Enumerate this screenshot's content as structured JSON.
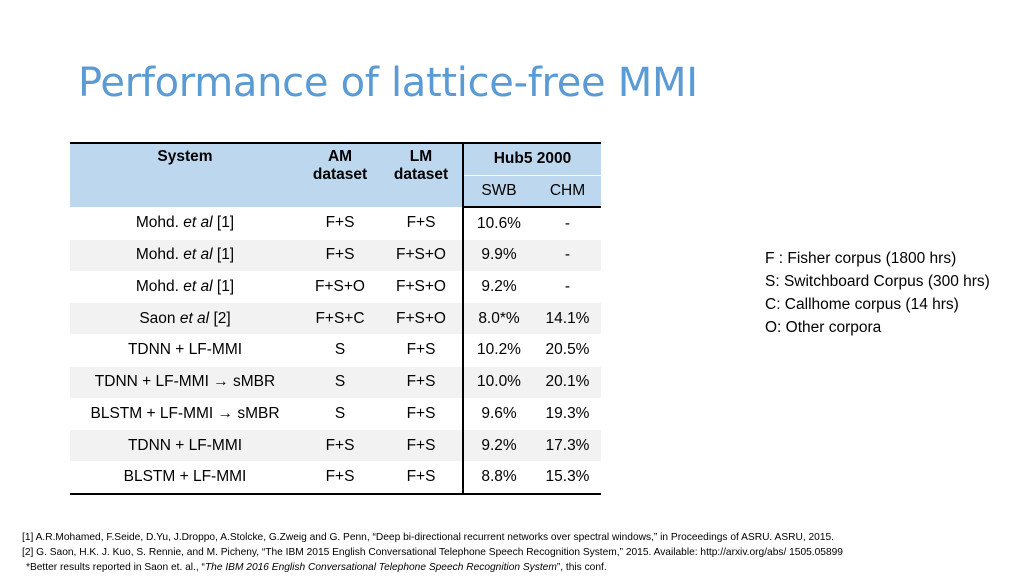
{
  "title": "Performance of lattice-free MMI",
  "table": {
    "headers": {
      "system": "System",
      "am_line1": "AM",
      "am_line2": "dataset",
      "lm_line1": "LM",
      "lm_line2": "dataset",
      "hub5": "Hub5 2000",
      "swb": "SWB",
      "chm": "CHM"
    },
    "rows": [
      {
        "sys_name": "Mohd. ",
        "sys_italic": "et al",
        "sys_ref": " [1]",
        "am": "F+S",
        "lm": "F+S",
        "swb": "10.6%",
        "chm": "-"
      },
      {
        "sys_name": "Mohd. ",
        "sys_italic": "et al",
        "sys_ref": " [1]",
        "am": "F+S",
        "lm": "F+S+O",
        "swb": "9.9%",
        "chm": "-"
      },
      {
        "sys_name": "Mohd. ",
        "sys_italic": "et al",
        "sys_ref": " [1]",
        "am": "F+S+O",
        "lm": "F+S+O",
        "swb": "9.2%",
        "chm": "-"
      },
      {
        "sys_name": "Saon ",
        "sys_italic": "et al",
        "sys_ref": " [2]",
        "am": "F+S+C",
        "lm": "F+S+O",
        "swb": "8.0*%",
        "chm": "14.1%"
      },
      {
        "sys_name": "TDNN + LF-MMI",
        "sys_italic": "",
        "sys_ref": "",
        "am": "S",
        "lm": "F+S",
        "swb": "10.2%",
        "chm": "20.5%"
      },
      {
        "sys_name": "TDNN + LF-MMI → sMBR",
        "sys_italic": "",
        "sys_ref": "",
        "am": "S",
        "lm": "F+S",
        "swb": "10.0%",
        "chm": "20.1%"
      },
      {
        "sys_name": "BLSTM + LF-MMI → sMBR",
        "sys_italic": "",
        "sys_ref": "",
        "am": "S",
        "lm": "F+S",
        "swb": "9.6%",
        "chm": "19.3%"
      },
      {
        "sys_name": "TDNN + LF-MMI",
        "sys_italic": "",
        "sys_ref": "",
        "am": "F+S",
        "lm": "F+S",
        "swb": "9.2%",
        "chm": "17.3%"
      },
      {
        "sys_name": "BLSTM + LF-MMI",
        "sys_italic": "",
        "sys_ref": "",
        "am": "F+S",
        "lm": "F+S",
        "swb": "8.8%",
        "chm": "15.3%"
      }
    ]
  },
  "legend": [
    "F : Fisher corpus (1800 hrs)",
    "S: Switchboard Corpus (300 hrs)",
    "C: Callhome corpus (14 hrs)",
    "O: Other corpora"
  ],
  "references": {
    "ref1": "[1] A.R.Mohamed, F.Seide, D.Yu, J.Droppo, A.Stolcke, G.Zweig and G. Penn, “Deep bi-directional recurrent networks over spectral windows,” in Proceedings of ASRU. ASRU, 2015.",
    "ref2": "[2] G. Saon, H.K. J. Kuo, S. Rennie, and M. Picheny, “The IBM 2015 English Conversational Telephone Speech Recognition System,” 2015. Available: http://arxiv.org/abs/ 1505.05899",
    "note_prefix": "*Better results reported in Saon et. al., “",
    "note_italic": "The IBM 2016 English Conversational Telephone Speech Recognition System",
    "note_suffix": "”, this conf."
  }
}
